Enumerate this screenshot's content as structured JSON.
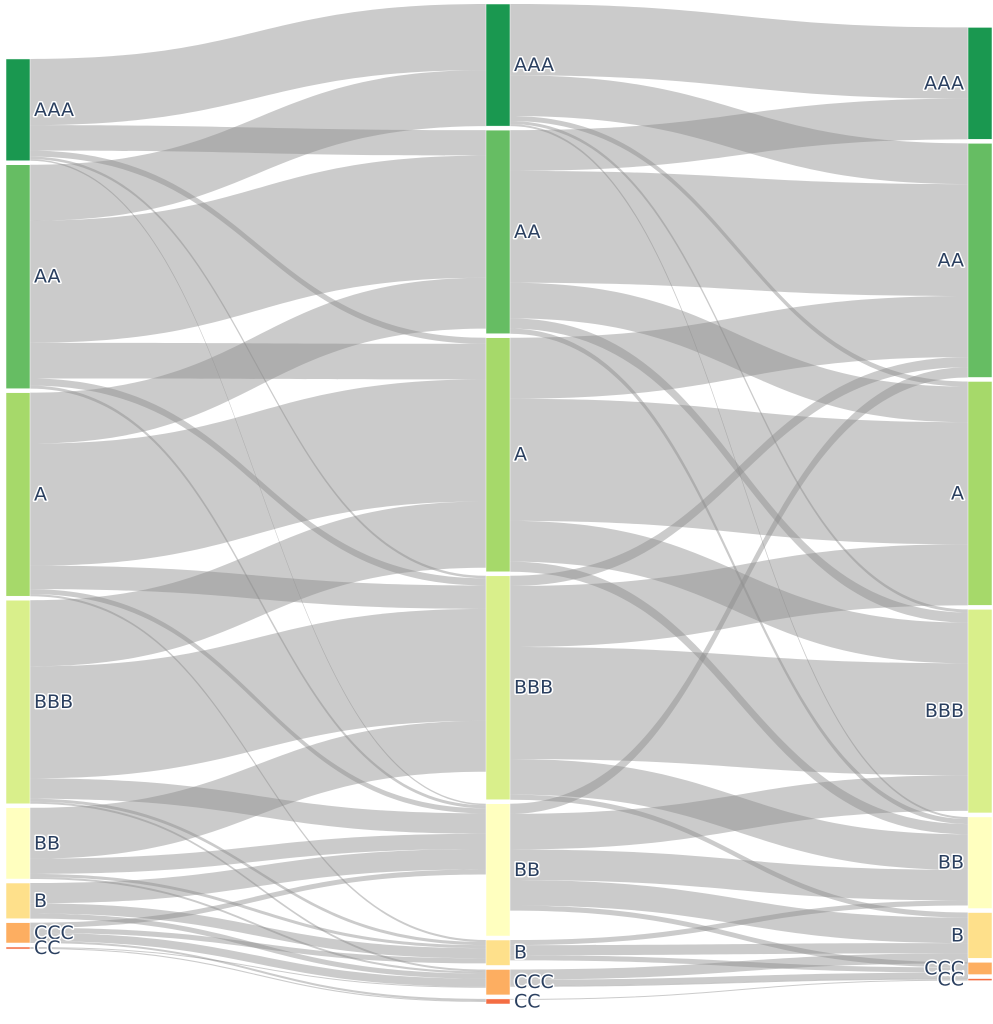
{
  "chart_data": {
    "type": "sankey",
    "stages": [
      {
        "nodes": [
          {
            "label": "AAA",
            "value": 10,
            "color": "#1a9850"
          },
          {
            "label": "AA",
            "value": 22,
            "color": "#66bd63"
          },
          {
            "label": "A",
            "value": 20,
            "color": "#a6d96a"
          },
          {
            "label": "BBB",
            "value": 20,
            "color": "#d9ef8b"
          },
          {
            "label": "BB",
            "value": 7,
            "color": "#ffffbf"
          },
          {
            "label": "B",
            "value": 3.5,
            "color": "#fee08b"
          },
          {
            "label": "CCC",
            "value": 2,
            "color": "#fdae61"
          },
          {
            "label": "CC",
            "value": 0.2,
            "color": "#f46d43"
          }
        ]
      },
      {
        "nodes": [
          {
            "label": "AAA",
            "value": 12,
            "color": "#1a9850"
          },
          {
            "label": "AA",
            "value": 20,
            "color": "#66bd63"
          },
          {
            "label": "A",
            "value": 23,
            "color": "#a6d96a"
          },
          {
            "label": "BBB",
            "value": 22,
            "color": "#d9ef8b"
          },
          {
            "label": "BB",
            "value": 13,
            "color": "#ffffbf"
          },
          {
            "label": "B",
            "value": 2.5,
            "color": "#fee08b"
          },
          {
            "label": "CCC",
            "value": 2.5,
            "color": "#fdae61"
          },
          {
            "label": "CC",
            "value": 0.5,
            "color": "#f46d43"
          }
        ]
      },
      {
        "nodes": [
          {
            "label": "AAA",
            "value": 11,
            "color": "#1a9850"
          },
          {
            "label": "AA",
            "value": 23,
            "color": "#66bd63"
          },
          {
            "label": "A",
            "value": 22,
            "color": "#a6d96a"
          },
          {
            "label": "BBB",
            "value": 20,
            "color": "#d9ef8b"
          },
          {
            "label": "BB",
            "value": 9,
            "color": "#ffffbf"
          },
          {
            "label": "B",
            "value": 4.5,
            "color": "#fee08b"
          },
          {
            "label": "CCC",
            "value": 1.2,
            "color": "#fdae61"
          },
          {
            "label": "CC",
            "value": 0.2,
            "color": "#f46d43"
          }
        ]
      }
    ],
    "links": [
      [
        {
          "source": "AAA",
          "target": "AAA",
          "value": 6.5
        },
        {
          "source": "AAA",
          "target": "AA",
          "value": 2.5
        },
        {
          "source": "AAA",
          "target": "A",
          "value": 0.6
        },
        {
          "source": "AAA",
          "target": "BBB",
          "value": 0.25
        },
        {
          "source": "AAA",
          "target": "BB",
          "value": 0.15
        },
        {
          "source": "AA",
          "target": "AAA",
          "value": 5.5
        },
        {
          "source": "AA",
          "target": "AA",
          "value": 12
        },
        {
          "source": "AA",
          "target": "A",
          "value": 3.5
        },
        {
          "source": "AA",
          "target": "BBB",
          "value": 0.7
        },
        {
          "source": "AA",
          "target": "BB",
          "value": 0.3
        },
        {
          "source": "A",
          "target": "AA",
          "value": 5
        },
        {
          "source": "A",
          "target": "A",
          "value": 12
        },
        {
          "source": "A",
          "target": "BBB",
          "value": 2.3
        },
        {
          "source": "A",
          "target": "BB",
          "value": 0.5
        },
        {
          "source": "A",
          "target": "B",
          "value": 0.2
        },
        {
          "source": "BBB",
          "target": "A",
          "value": 6.5
        },
        {
          "source": "BBB",
          "target": "BBB",
          "value": 11
        },
        {
          "source": "BBB",
          "target": "BB",
          "value": 2
        },
        {
          "source": "BBB",
          "target": "B",
          "value": 0.3
        },
        {
          "source": "BBB",
          "target": "CCC",
          "value": 0.2
        },
        {
          "source": "BB",
          "target": "BBB",
          "value": 5
        },
        {
          "source": "BB",
          "target": "BB",
          "value": 1.5
        },
        {
          "source": "BB",
          "target": "B",
          "value": 0.3
        },
        {
          "source": "BB",
          "target": "CCC",
          "value": 0.2
        },
        {
          "source": "B",
          "target": "BB",
          "value": 2
        },
        {
          "source": "B",
          "target": "B",
          "value": 1
        },
        {
          "source": "B",
          "target": "CCC",
          "value": 0.5
        },
        {
          "source": "CCC",
          "target": "BB",
          "value": 0.5
        },
        {
          "source": "CCC",
          "target": "B",
          "value": 0.5
        },
        {
          "source": "CCC",
          "target": "CCC",
          "value": 0.8
        },
        {
          "source": "CCC",
          "target": "CC",
          "value": 0.2
        },
        {
          "source": "CC",
          "target": "CCC",
          "value": 0.1
        },
        {
          "source": "CC",
          "target": "CC",
          "value": 0.1
        }
      ],
      [
        {
          "source": "AAA",
          "target": "AAA",
          "value": 7
        },
        {
          "source": "AAA",
          "target": "AA",
          "value": 4
        },
        {
          "source": "AAA",
          "target": "A",
          "value": 0.5
        },
        {
          "source": "AAA",
          "target": "BBB",
          "value": 0.3
        },
        {
          "source": "AAA",
          "target": "BB",
          "value": 0.2
        },
        {
          "source": "AA",
          "target": "AAA",
          "value": 4
        },
        {
          "source": "AA",
          "target": "AA",
          "value": 11
        },
        {
          "source": "AA",
          "target": "A",
          "value": 3.5
        },
        {
          "source": "AA",
          "target": "BBB",
          "value": 1
        },
        {
          "source": "AA",
          "target": "BB",
          "value": 0.5
        },
        {
          "source": "A",
          "target": "AA",
          "value": 6
        },
        {
          "source": "A",
          "target": "A",
          "value": 12
        },
        {
          "source": "A",
          "target": "BBB",
          "value": 4
        },
        {
          "source": "A",
          "target": "BB",
          "value": 1
        },
        {
          "source": "BBB",
          "target": "AA",
          "value": 1
        },
        {
          "source": "BBB",
          "target": "A",
          "value": 6
        },
        {
          "source": "BBB",
          "target": "BBB",
          "value": 11
        },
        {
          "source": "BBB",
          "target": "BB",
          "value": 3.5
        },
        {
          "source": "BBB",
          "target": "B",
          "value": 0.5
        },
        {
          "source": "BB",
          "target": "AA",
          "value": 1
        },
        {
          "source": "BB",
          "target": "BBB",
          "value": 3.5
        },
        {
          "source": "BB",
          "target": "BB",
          "value": 3
        },
        {
          "source": "BB",
          "target": "B",
          "value": 2.5
        },
        {
          "source": "BB",
          "target": "CCC",
          "value": 0.5
        },
        {
          "source": "B",
          "target": "BB",
          "value": 0.5
        },
        {
          "source": "B",
          "target": "B",
          "value": 1
        },
        {
          "source": "B",
          "target": "CCC",
          "value": 0.5
        },
        {
          "source": "CCC",
          "target": "B",
          "value": 1
        },
        {
          "source": "CCC",
          "target": "CCC",
          "value": 0.6
        },
        {
          "source": "CCC",
          "target": "CC",
          "value": 0.1
        },
        {
          "source": "CC",
          "target": "CC",
          "value": 0.1
        }
      ]
    ]
  }
}
